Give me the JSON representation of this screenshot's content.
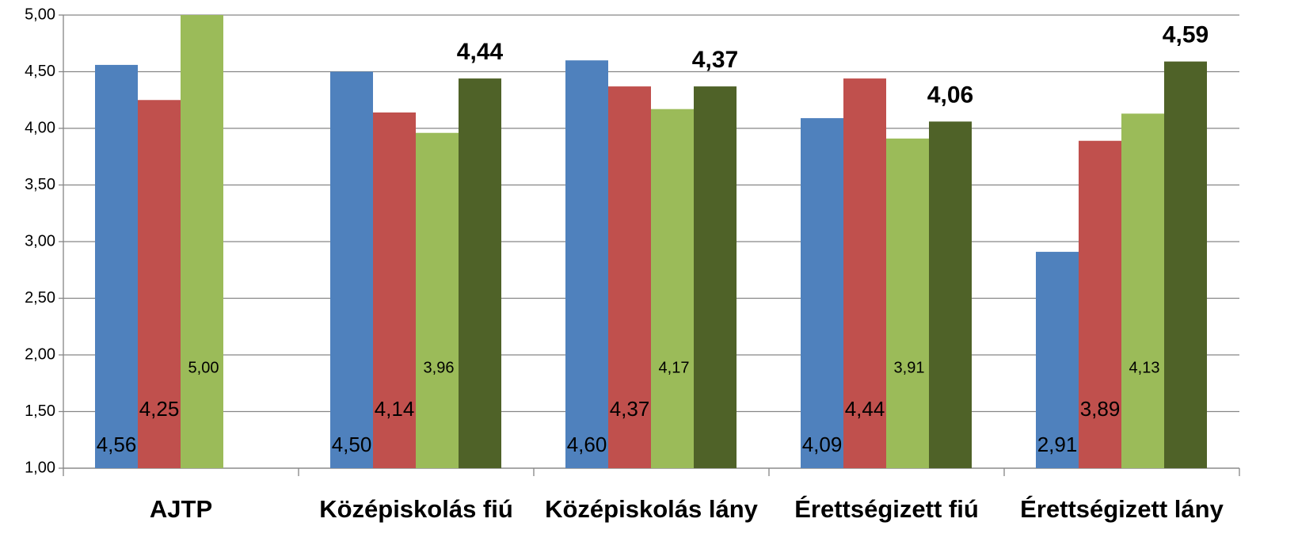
{
  "chart_data": {
    "type": "bar",
    "categories": [
      "AJTP",
      "Középiskolás fiú",
      "Középiskolás lány",
      "Érettségizett fiú",
      "Érettségizett lány"
    ],
    "series": [
      {
        "color": "#4f81bd",
        "values": [
          4.56,
          4.5,
          4.6,
          4.09,
          2.91
        ],
        "value_labels": [
          "4,56",
          "4,50",
          "4,60",
          "4,09",
          "2,91"
        ]
      },
      {
        "color": "#c0504d",
        "values": [
          4.25,
          4.14,
          4.37,
          4.44,
          3.89
        ],
        "value_labels": [
          "4,25",
          "4,14",
          "4,37",
          "4,44",
          "3,89"
        ]
      },
      {
        "color": "#9bbb59",
        "values": [
          5.0,
          3.96,
          4.17,
          3.91,
          4.13
        ],
        "value_labels": [
          "5,00",
          "3,96",
          "4,17",
          "3,91",
          "4,13"
        ]
      },
      {
        "color": "#4f6228",
        "values": [
          null,
          4.44,
          4.37,
          4.06,
          4.59
        ],
        "value_labels": [
          null,
          "4,44",
          "4,37",
          "4,06",
          "4,59"
        ]
      }
    ],
    "ylim": [
      1,
      5
    ],
    "yticks": [
      {
        "value": 1,
        "label": "1,00"
      },
      {
        "value": 1.5,
        "label": "1,50"
      },
      {
        "value": 2,
        "label": "2,00"
      },
      {
        "value": 2.5,
        "label": "2,50"
      },
      {
        "value": 3,
        "label": "3,00"
      },
      {
        "value": 3.5,
        "label": "3,50"
      },
      {
        "value": 4,
        "label": "4,00"
      },
      {
        "value": 4.5,
        "label": "4,50"
      },
      {
        "value": 5,
        "label": "5,00"
      }
    ],
    "grid": true
  }
}
